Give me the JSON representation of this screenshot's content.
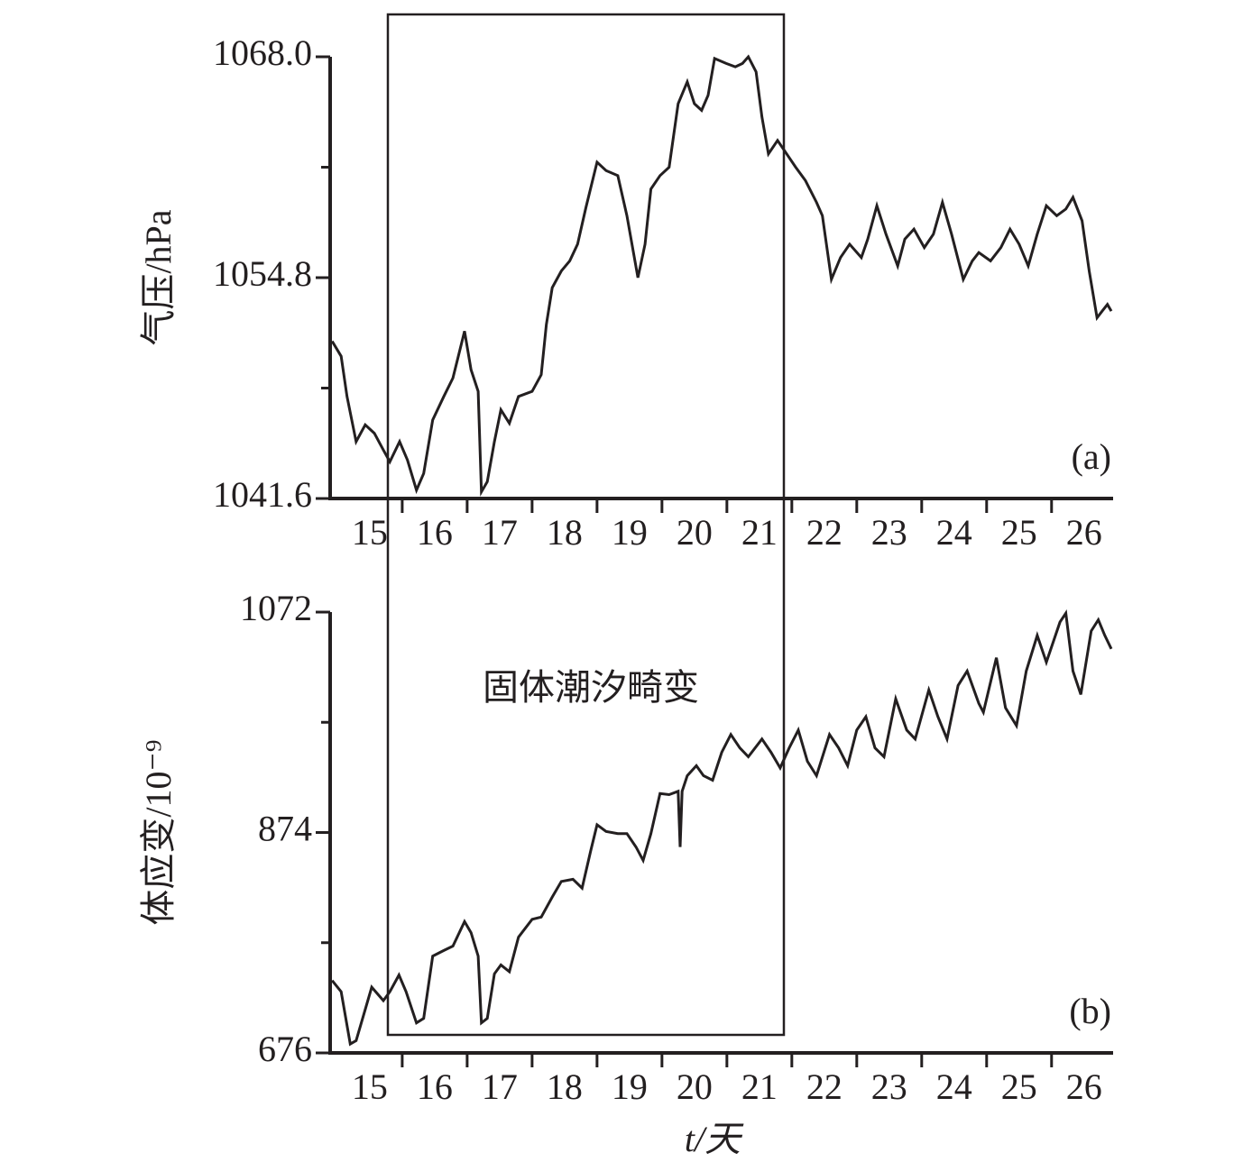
{
  "chart_data": [
    {
      "type": "line",
      "y_label": "气压/hPa",
      "panel_label": "(a)",
      "xlim": [
        14.39,
        26.42
      ],
      "xticks": [
        15,
        16,
        17,
        18,
        19,
        20,
        21,
        22,
        23,
        24,
        25,
        26
      ],
      "xminorticks": [
        15.5,
        16.5,
        17.5,
        18.5,
        19.5,
        20.5,
        21.5,
        22.5,
        23.5,
        24.5,
        25.5,
        26.5
      ],
      "ylim": [
        1041.6,
        1068
      ],
      "yticks": [
        1041.6,
        1054.8,
        {
          "value": 1068,
          "label": "1068.0"
        }
      ],
      "yminorticks": [
        1048.2,
        1061.4
      ],
      "series": [
        {
          "color": "#231f20",
          "x": [
            14.42,
            14.56,
            14.65,
            14.79,
            14.93,
            15.07,
            15.21,
            15.31,
            15.46,
            15.58,
            15.72,
            15.83,
            15.97,
            16.14,
            16.28,
            16.46,
            16.56,
            16.67,
            16.72,
            16.81,
            16.92,
            17.02,
            17.15,
            17.29,
            17.5,
            17.64,
            17.72,
            17.81,
            17.95,
            18.08,
            18.2,
            18.33,
            18.5,
            18.64,
            18.82,
            18.96,
            19.13,
            19.24,
            19.33,
            19.47,
            19.61,
            19.75,
            19.89,
            20.0,
            20.11,
            20.21,
            20.31,
            20.49,
            20.63,
            20.74,
            20.83,
            20.95,
            21.04,
            21.14,
            21.28,
            21.42,
            21.56,
            21.71,
            21.88,
            21.97,
            22.11,
            22.25,
            22.39,
            22.57,
            22.67,
            22.81,
            22.95,
            23.13,
            23.24,
            23.38,
            23.54,
            23.68,
            23.82,
            23.96,
            24.14,
            24.28,
            24.38,
            24.56,
            24.72,
            24.86,
            25.0,
            25.14,
            25.28,
            25.42,
            25.58,
            25.72,
            25.83,
            25.97,
            26.08,
            26.2,
            26.28,
            26.36,
            26.42
          ],
          "values": [
            1051.0,
            1050.1,
            1047.7,
            1045.0,
            1046.0,
            1045.5,
            1044.5,
            1043.8,
            1045.0,
            1043.9,
            1042.1,
            1043.1,
            1046.3,
            1047.7,
            1048.8,
            1051.6,
            1049.3,
            1048.0,
            1042.0,
            1042.6,
            1045.0,
            1046.9,
            1046.1,
            1047.7,
            1048.0,
            1049.0,
            1052.0,
            1054.2,
            1055.2,
            1055.8,
            1056.8,
            1059.0,
            1061.7,
            1061.2,
            1060.9,
            1058.5,
            1054.8,
            1056.8,
            1060.1,
            1060.9,
            1061.4,
            1065.2,
            1066.5,
            1065.2,
            1064.8,
            1065.7,
            1067.9,
            1067.6,
            1067.4,
            1067.6,
            1068.0,
            1067.1,
            1064.4,
            1062.2,
            1063.0,
            1062.2,
            1061.4,
            1060.6,
            1059.3,
            1058.5,
            1054.7,
            1056.0,
            1056.8,
            1056.0,
            1057.1,
            1059.1,
            1057.4,
            1055.5,
            1057.1,
            1057.7,
            1056.6,
            1057.4,
            1059.3,
            1057.4,
            1054.7,
            1055.8,
            1056.3,
            1055.8,
            1056.6,
            1057.7,
            1056.8,
            1055.5,
            1057.4,
            1059.1,
            1058.5,
            1058.9,
            1059.6,
            1058.2,
            1055.2,
            1052.4,
            1052.8,
            1053.2,
            1052.8
          ]
        }
      ]
    },
    {
      "type": "line",
      "y_label": "体应变/10⁻⁹",
      "x_label": "t/天",
      "panel_label": "(b)",
      "annotation": "固体潮汐畸变",
      "xlim": [
        14.39,
        26.42
      ],
      "xticks": [
        15,
        16,
        17,
        18,
        19,
        20,
        21,
        22,
        23,
        24,
        25,
        26
      ],
      "xminorticks": [
        15.5,
        16.5,
        17.5,
        18.5,
        19.5,
        20.5,
        21.5,
        22.5,
        23.5,
        24.5,
        25.5,
        26.5
      ],
      "ylim": [
        676,
        1072
      ],
      "yticks": [
        676,
        874,
        1072
      ],
      "yminorticks": [
        775,
        973
      ],
      "series": [
        {
          "color": "#231f20",
          "x": [
            14.42,
            14.56,
            14.7,
            14.79,
            14.93,
            15.03,
            15.21,
            15.31,
            15.45,
            15.56,
            15.72,
            15.83,
            15.97,
            16.14,
            16.28,
            16.46,
            16.56,
            16.67,
            16.72,
            16.81,
            16.92,
            17.02,
            17.15,
            17.29,
            17.5,
            17.64,
            17.81,
            17.95,
            18.13,
            18.27,
            18.4,
            18.5,
            18.64,
            18.82,
            18.96,
            19.1,
            19.21,
            19.33,
            19.47,
            19.61,
            19.75,
            19.78,
            19.81,
            19.89,
            20.03,
            20.14,
            20.28,
            20.42,
            20.56,
            20.7,
            20.83,
            21.04,
            21.18,
            21.32,
            21.46,
            21.6,
            21.74,
            21.88,
            22.08,
            22.22,
            22.36,
            22.5,
            22.64,
            22.78,
            22.92,
            23.1,
            23.27,
            23.4,
            23.61,
            23.75,
            23.89,
            24.06,
            24.2,
            24.38,
            24.45,
            24.65,
            24.79,
            24.96,
            25.11,
            25.28,
            25.42,
            25.63,
            25.72,
            25.83,
            25.95,
            26.11,
            26.22,
            26.32,
            26.42
          ],
          "values": [
            741,
            731,
            684,
            687,
            715,
            735,
            723,
            731,
            746,
            731,
            703,
            707,
            763,
            768,
            772,
            794,
            784,
            763,
            703,
            707,
            747,
            755,
            749,
            780,
            796,
            798,
            816,
            830,
            832,
            824,
            857,
            881,
            875,
            873,
            873,
            861,
            849,
            873,
            909,
            908,
            911,
            861,
            911,
            925,
            934,
            925,
            921,
            946,
            962,
            950,
            942,
            958,
            946,
            932,
            950,
            966,
            938,
            925,
            962,
            950,
            934,
            966,
            978,
            950,
            942,
            994,
            966,
            958,
            1002,
            978,
            958,
            1006,
            1019,
            990,
            982,
            1031,
            986,
            970,
            1019,
            1051,
            1027,
            1063,
            1071,
            1019,
            998,
            1055,
            1065,
            1051,
            1039
          ]
        }
      ]
    }
  ]
}
